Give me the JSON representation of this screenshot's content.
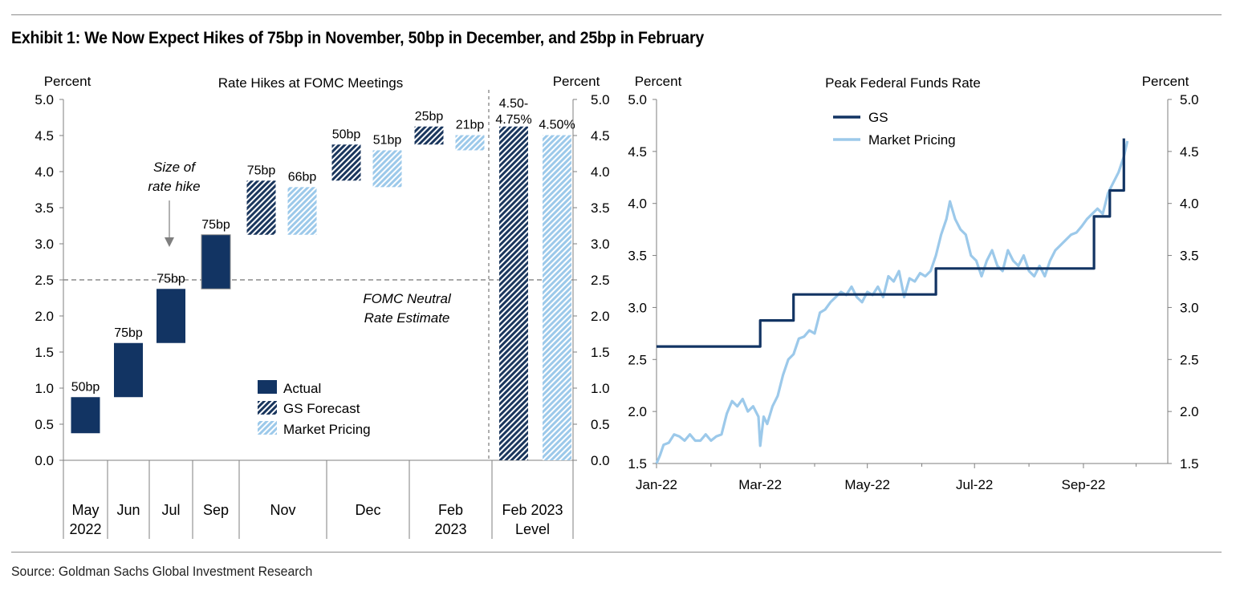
{
  "title": "Exhibit 1: We Now Expect Hikes of 75bp in November, 50bp in December, and 25bp in February",
  "source": "Source: Goldman Sachs Global Investment Research",
  "colors": {
    "actual": "#123463",
    "gs": "#1a365d",
    "market": "#9cc9ea",
    "grid": "#7f7f7f"
  },
  "chart_data": [
    {
      "type": "bar",
      "subtype": "floating-waterfall",
      "title": "Rate Hikes at FOMC Meetings",
      "ylabel_left": "Percent",
      "ylabel_right": "Percent",
      "ylim": [
        0,
        5
      ],
      "yticks": [
        "0.0",
        "0.5",
        "1.0",
        "1.5",
        "2.0",
        "2.5",
        "3.0",
        "3.5",
        "4.0",
        "4.5",
        "5.0"
      ],
      "categories": [
        {
          "label": "May",
          "label2": "2022"
        },
        {
          "label": "Jun",
          "label2": ""
        },
        {
          "label": "Jul",
          "label2": ""
        },
        {
          "label": "Sep",
          "label2": ""
        },
        {
          "label": "Nov",
          "label2": ""
        },
        {
          "label": "Dec",
          "label2": ""
        },
        {
          "label": "Feb",
          "label2": "2023"
        },
        {
          "label": "Feb 2023",
          "label2": "Level"
        }
      ],
      "bars": [
        {
          "series": "Actual",
          "cat": 0,
          "low": 0.375,
          "high": 0.875,
          "label": "50bp"
        },
        {
          "series": "Actual",
          "cat": 1,
          "low": 0.875,
          "high": 1.625,
          "label": "75bp"
        },
        {
          "series": "Actual",
          "cat": 2,
          "low": 1.625,
          "high": 2.375,
          "label": "75bp"
        },
        {
          "series": "Actual",
          "cat": 3,
          "low": 2.375,
          "high": 3.125,
          "label": "75bp"
        },
        {
          "series": "GS Forecast",
          "cat": 4,
          "low": 3.125,
          "high": 3.875,
          "label": "75bp"
        },
        {
          "series": "Market Pricing",
          "cat": 4,
          "low": 3.125,
          "high": 3.785,
          "label": "66bp"
        },
        {
          "series": "GS Forecast",
          "cat": 5,
          "low": 3.875,
          "high": 4.375,
          "label": "50bp"
        },
        {
          "series": "Market Pricing",
          "cat": 5,
          "low": 3.785,
          "high": 4.295,
          "label": "51bp"
        },
        {
          "series": "GS Forecast",
          "cat": 6,
          "low": 4.375,
          "high": 4.625,
          "label": "25bp"
        },
        {
          "series": "Market Pricing",
          "cat": 6,
          "low": 4.295,
          "high": 4.505,
          "label": "21bp"
        },
        {
          "series": "GS Forecast",
          "cat": 7,
          "low": 0,
          "high": 4.625,
          "label": "4.50-",
          "label2": "4.75%"
        },
        {
          "series": "Market Pricing",
          "cat": 7,
          "low": 0,
          "high": 4.505,
          "label": "4.50%"
        }
      ],
      "reference_line": {
        "value": 2.5,
        "label": "FOMC Neutral",
        "label2": "Rate Estimate"
      },
      "annotation": {
        "line1": "Size of",
        "line2": "rate hike"
      },
      "legend": {
        "position": "lower-middle",
        "entries": [
          "Actual",
          "GS Forecast",
          "Market Pricing"
        ]
      }
    },
    {
      "type": "line",
      "title": "Peak Federal Funds Rate",
      "ylabel_left": "Percent",
      "ylabel_right": "Percent",
      "ylim": [
        1.5,
        5.0
      ],
      "yticks": [
        "1.5",
        "2.0",
        "2.5",
        "3.0",
        "3.5",
        "4.0",
        "4.5",
        "5.0"
      ],
      "xticks": [
        "Jan-22",
        "Mar-22",
        "May-22",
        "Jul-22",
        "Sep-22"
      ],
      "legend": {
        "position": "top-left",
        "entries": [
          "GS",
          "Market Pricing"
        ]
      },
      "series": [
        {
          "name": "GS",
          "color": "#123463",
          "points": [
            [
              "2022-01-01",
              2.625
            ],
            [
              "2022-03-01",
              2.625
            ],
            [
              "2022-03-01",
              2.875
            ],
            [
              "2022-03-20",
              2.875
            ],
            [
              "2022-03-20",
              3.125
            ],
            [
              "2022-06-09",
              3.125
            ],
            [
              "2022-06-09",
              3.375
            ],
            [
              "2022-09-07",
              3.375
            ],
            [
              "2022-09-07",
              3.875
            ],
            [
              "2022-09-16",
              3.875
            ],
            [
              "2022-09-16",
              4.125
            ],
            [
              "2022-09-24",
              4.125
            ],
            [
              "2022-09-24",
              4.625
            ]
          ]
        },
        {
          "name": "Market Pricing",
          "color": "#9cc9ea",
          "points": [
            [
              "2022-01-01",
              1.5
            ],
            [
              "2022-01-03",
              1.58
            ],
            [
              "2022-01-05",
              1.68
            ],
            [
              "2022-01-08",
              1.7
            ],
            [
              "2022-01-11",
              1.78
            ],
            [
              "2022-01-14",
              1.76
            ],
            [
              "2022-01-17",
              1.72
            ],
            [
              "2022-01-20",
              1.78
            ],
            [
              "2022-01-23",
              1.72
            ],
            [
              "2022-01-26",
              1.72
            ],
            [
              "2022-01-29",
              1.78
            ],
            [
              "2022-02-01",
              1.72
            ],
            [
              "2022-02-04",
              1.76
            ],
            [
              "2022-02-07",
              1.78
            ],
            [
              "2022-02-10",
              1.98
            ],
            [
              "2022-02-13",
              2.1
            ],
            [
              "2022-02-16",
              2.05
            ],
            [
              "2022-02-19",
              2.12
            ],
            [
              "2022-02-22",
              2.0
            ],
            [
              "2022-02-25",
              2.05
            ],
            [
              "2022-02-28",
              1.95
            ],
            [
              "2022-03-01",
              1.67
            ],
            [
              "2022-03-03",
              1.95
            ],
            [
              "2022-03-05",
              1.88
            ],
            [
              "2022-03-08",
              2.05
            ],
            [
              "2022-03-11",
              2.15
            ],
            [
              "2022-03-14",
              2.35
            ],
            [
              "2022-03-17",
              2.5
            ],
            [
              "2022-03-20",
              2.55
            ],
            [
              "2022-03-23",
              2.7
            ],
            [
              "2022-03-26",
              2.72
            ],
            [
              "2022-03-29",
              2.78
            ],
            [
              "2022-04-01",
              2.75
            ],
            [
              "2022-04-04",
              2.95
            ],
            [
              "2022-04-07",
              2.98
            ],
            [
              "2022-04-10",
              3.05
            ],
            [
              "2022-04-13",
              3.1
            ],
            [
              "2022-04-16",
              3.15
            ],
            [
              "2022-04-19",
              3.12
            ],
            [
              "2022-04-22",
              3.2
            ],
            [
              "2022-04-25",
              3.1
            ],
            [
              "2022-04-28",
              3.05
            ],
            [
              "2022-05-01",
              3.15
            ],
            [
              "2022-05-04",
              3.12
            ],
            [
              "2022-05-07",
              3.2
            ],
            [
              "2022-05-10",
              3.1
            ],
            [
              "2022-05-13",
              3.3
            ],
            [
              "2022-05-16",
              3.25
            ],
            [
              "2022-05-19",
              3.35
            ],
            [
              "2022-05-22",
              3.1
            ],
            [
              "2022-05-25",
              3.28
            ],
            [
              "2022-05-28",
              3.25
            ],
            [
              "2022-05-31",
              3.33
            ],
            [
              "2022-06-03",
              3.3
            ],
            [
              "2022-06-06",
              3.35
            ],
            [
              "2022-06-09",
              3.5
            ],
            [
              "2022-06-12",
              3.7
            ],
            [
              "2022-06-15",
              3.85
            ],
            [
              "2022-06-17",
              4.02
            ],
            [
              "2022-06-20",
              3.85
            ],
            [
              "2022-06-23",
              3.75
            ],
            [
              "2022-06-26",
              3.7
            ],
            [
              "2022-06-29",
              3.5
            ],
            [
              "2022-07-02",
              3.45
            ],
            [
              "2022-07-05",
              3.3
            ],
            [
              "2022-07-08",
              3.45
            ],
            [
              "2022-07-11",
              3.55
            ],
            [
              "2022-07-14",
              3.4
            ],
            [
              "2022-07-17",
              3.35
            ],
            [
              "2022-07-20",
              3.55
            ],
            [
              "2022-07-23",
              3.45
            ],
            [
              "2022-07-26",
              3.4
            ],
            [
              "2022-07-29",
              3.5
            ],
            [
              "2022-08-01",
              3.35
            ],
            [
              "2022-08-04",
              3.3
            ],
            [
              "2022-08-07",
              3.4
            ],
            [
              "2022-08-10",
              3.3
            ],
            [
              "2022-08-13",
              3.45
            ],
            [
              "2022-08-16",
              3.55
            ],
            [
              "2022-08-19",
              3.6
            ],
            [
              "2022-08-22",
              3.65
            ],
            [
              "2022-08-25",
              3.7
            ],
            [
              "2022-08-28",
              3.72
            ],
            [
              "2022-08-31",
              3.78
            ],
            [
              "2022-09-03",
              3.85
            ],
            [
              "2022-09-06",
              3.9
            ],
            [
              "2022-09-09",
              3.95
            ],
            [
              "2022-09-12",
              3.9
            ],
            [
              "2022-09-15",
              4.1
            ],
            [
              "2022-09-18",
              4.2
            ],
            [
              "2022-09-21",
              4.3
            ],
            [
              "2022-09-24",
              4.45
            ],
            [
              "2022-09-26",
              4.6
            ]
          ]
        }
      ]
    }
  ]
}
